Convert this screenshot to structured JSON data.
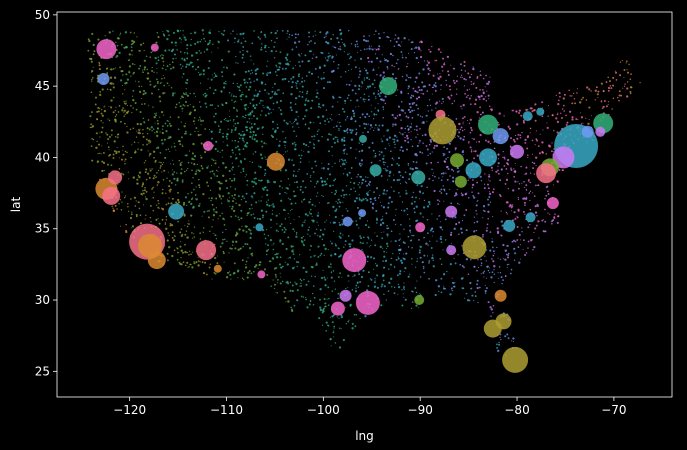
{
  "chart_data": {
    "type": "scatter",
    "title": "",
    "xlabel": "lng",
    "ylabel": "lat",
    "xlim": [
      -127.5,
      -64
    ],
    "ylim": [
      23.2,
      50.2
    ],
    "xticks": [
      -120,
      -110,
      -100,
      -90,
      -80,
      -70
    ],
    "yticks": [
      25,
      30,
      35,
      40,
      45,
      50
    ],
    "xtick_labels": [
      "−120",
      "−110",
      "−100",
      "−90",
      "−80",
      "−70"
    ],
    "ytick_labels": [
      "25",
      "30",
      "35",
      "40",
      "45",
      "50"
    ],
    "grid": false,
    "legend": "none",
    "colors": {
      "background": "#000000",
      "axes": "#ffffff",
      "palette": [
        "#f77189",
        "#dc8932",
        "#ae9d31",
        "#77ab31",
        "#33b07a",
        "#36ada4",
        "#38a9c5",
        "#6e9bf4",
        "#cc7af4",
        "#f565cc"
      ]
    },
    "points": [
      {
        "x": -122.4,
        "y": 47.6,
        "s": 10,
        "c": "#f565cc"
      },
      {
        "x": -122.7,
        "y": 45.5,
        "s": 6,
        "c": "#6e9bf4"
      },
      {
        "x": -117.4,
        "y": 47.7,
        "s": 4,
        "c": "#f565cc"
      },
      {
        "x": -122.4,
        "y": 37.8,
        "s": 11,
        "c": "#dc8932"
      },
      {
        "x": -121.9,
        "y": 37.3,
        "s": 9,
        "c": "#f77189"
      },
      {
        "x": -121.5,
        "y": 38.6,
        "s": 7,
        "c": "#f77189"
      },
      {
        "x": -118.2,
        "y": 34.1,
        "s": 18,
        "c": "#f77189"
      },
      {
        "x": -117.9,
        "y": 33.8,
        "s": 12,
        "c": "#dc8932"
      },
      {
        "x": -117.2,
        "y": 32.8,
        "s": 9,
        "c": "#dc8932"
      },
      {
        "x": -115.2,
        "y": 36.2,
        "s": 8,
        "c": "#38a9c5"
      },
      {
        "x": -112.1,
        "y": 33.5,
        "s": 10,
        "c": "#f77189"
      },
      {
        "x": -110.9,
        "y": 32.2,
        "s": 4,
        "c": "#dc8932"
      },
      {
        "x": -111.9,
        "y": 40.8,
        "s": 5,
        "c": "#f565cc"
      },
      {
        "x": -104.9,
        "y": 39.7,
        "s": 9,
        "c": "#dc8932"
      },
      {
        "x": -106.6,
        "y": 35.1,
        "s": 4,
        "c": "#38a9c5"
      },
      {
        "x": -106.4,
        "y": 31.8,
        "s": 4,
        "c": "#f565cc"
      },
      {
        "x": -96.8,
        "y": 32.8,
        "s": 12,
        "c": "#f565cc"
      },
      {
        "x": -95.4,
        "y": 29.8,
        "s": 12,
        "c": "#f565cc"
      },
      {
        "x": -98.5,
        "y": 29.4,
        "s": 7,
        "c": "#f565cc"
      },
      {
        "x": -97.7,
        "y": 30.3,
        "s": 6,
        "c": "#cc7af4"
      },
      {
        "x": -97.5,
        "y": 35.5,
        "s": 5,
        "c": "#6e9bf4"
      },
      {
        "x": -96.0,
        "y": 36.1,
        "s": 4,
        "c": "#6e9bf4"
      },
      {
        "x": -94.6,
        "y": 39.1,
        "s": 6,
        "c": "#36ada4"
      },
      {
        "x": -90.2,
        "y": 38.6,
        "s": 7,
        "c": "#36ada4"
      },
      {
        "x": -93.3,
        "y": 45.0,
        "s": 9,
        "c": "#33b07a"
      },
      {
        "x": -87.9,
        "y": 43.0,
        "s": 5,
        "c": "#f77189"
      },
      {
        "x": -87.7,
        "y": 41.9,
        "s": 14,
        "c": "#ae9d31"
      },
      {
        "x": -86.2,
        "y": 39.8,
        "s": 7,
        "c": "#77ab31"
      },
      {
        "x": -84.5,
        "y": 39.1,
        "s": 8,
        "c": "#38a9c5"
      },
      {
        "x": -83.0,
        "y": 40.0,
        "s": 9,
        "c": "#38a9c5"
      },
      {
        "x": -83.0,
        "y": 42.3,
        "s": 10,
        "c": "#33b07a"
      },
      {
        "x": -81.7,
        "y": 41.5,
        "s": 8,
        "c": "#6e9bf4"
      },
      {
        "x": -80.0,
        "y": 40.4,
        "s": 7,
        "c": "#cc7af4"
      },
      {
        "x": -78.9,
        "y": 42.9,
        "s": 5,
        "c": "#38a9c5"
      },
      {
        "x": -77.6,
        "y": 43.2,
        "s": 4,
        "c": "#38a9c5"
      },
      {
        "x": -73.9,
        "y": 40.8,
        "s": 22,
        "c": "#38a9c5"
      },
      {
        "x": -75.2,
        "y": 40.0,
        "s": 11,
        "c": "#cc7af4"
      },
      {
        "x": -76.6,
        "y": 39.3,
        "s": 9,
        "c": "#77ab31"
      },
      {
        "x": -77.0,
        "y": 38.9,
        "s": 10,
        "c": "#f77189"
      },
      {
        "x": -71.1,
        "y": 42.4,
        "s": 10,
        "c": "#33b07a"
      },
      {
        "x": -72.7,
        "y": 41.8,
        "s": 6,
        "c": "#6e9bf4"
      },
      {
        "x": -71.4,
        "y": 41.8,
        "s": 5,
        "c": "#cc7af4"
      },
      {
        "x": -76.3,
        "y": 36.8,
        "s": 6,
        "c": "#f565cc"
      },
      {
        "x": -78.6,
        "y": 35.8,
        "s": 5,
        "c": "#38a9c5"
      },
      {
        "x": -80.8,
        "y": 35.2,
        "s": 6,
        "c": "#38a9c5"
      },
      {
        "x": -84.4,
        "y": 33.7,
        "s": 12,
        "c": "#ae9d31"
      },
      {
        "x": -86.8,
        "y": 36.2,
        "s": 6,
        "c": "#cc7af4"
      },
      {
        "x": -90.0,
        "y": 35.1,
        "s": 5,
        "c": "#f565cc"
      },
      {
        "x": -90.1,
        "y": 30.0,
        "s": 5,
        "c": "#77ab31"
      },
      {
        "x": -86.8,
        "y": 33.5,
        "s": 5,
        "c": "#cc7af4"
      },
      {
        "x": -81.7,
        "y": 30.3,
        "s": 6,
        "c": "#dc8932"
      },
      {
        "x": -81.4,
        "y": 28.5,
        "s": 8,
        "c": "#ae9d31"
      },
      {
        "x": -82.5,
        "y": 28.0,
        "s": 9,
        "c": "#ae9d31"
      },
      {
        "x": -80.2,
        "y": 25.8,
        "s": 13,
        "c": "#ae9d31"
      },
      {
        "x": -85.8,
        "y": 38.3,
        "s": 6,
        "c": "#77ab31"
      },
      {
        "x": -95.9,
        "y": 41.3,
        "s": 4,
        "c": "#36ada4"
      }
    ]
  }
}
